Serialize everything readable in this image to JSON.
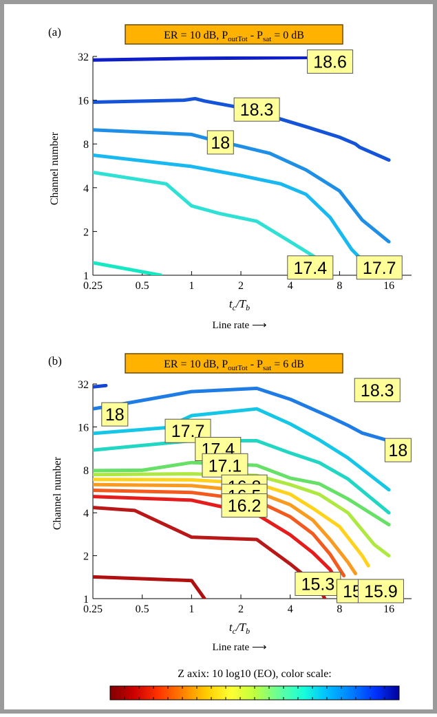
{
  "chart_data": [
    {
      "type": "contour",
      "panel_label": "(a)",
      "title": {
        "prefix": "ER = 10 dB, P",
        "sub1": "outTot",
        "mid": " - P",
        "sub2": "sat",
        "suffix": " = 0 dB"
      },
      "xlabel": {
        "t": "t",
        "t_sub": "c",
        "slash": "/T",
        "T_sub": "b"
      },
      "x_caption": "Line rate ⟶",
      "ylabel": "Channel number",
      "x_scale": "log2",
      "y_scale": "log2",
      "xlim": [
        0.25,
        22
      ],
      "ylim": [
        1,
        32
      ],
      "x_ticks": [
        0.25,
        0.5,
        1,
        2,
        4,
        8,
        16
      ],
      "x_tick_labels": [
        "0.25",
        "0.5",
        "1",
        "2",
        "4",
        "8",
        "16"
      ],
      "y_ticks": [
        1,
        2,
        4,
        8,
        16,
        32
      ],
      "y_tick_labels": [
        "1",
        "2",
        "4",
        "8",
        "16",
        "32"
      ],
      "series": [
        {
          "color": "#17e8c4",
          "points": [
            [
              0.25,
              1.22
            ],
            [
              0.65,
              1
            ]
          ]
        },
        {
          "color": "#2fe0d4",
          "points": [
            [
              0.25,
              5.1
            ],
            [
              0.7,
              4.25
            ],
            [
              1,
              3.0
            ],
            [
              1.5,
              2.65
            ],
            [
              2.5,
              2.35
            ],
            [
              4,
              1.7
            ],
            [
              6,
              1.28
            ],
            [
              7,
              1.1
            ]
          ]
        },
        {
          "color": "#18b8f0",
          "points": [
            [
              0.25,
              6.7
            ],
            [
              1,
              5.6
            ],
            [
              2,
              4.85
            ],
            [
              3.5,
              4.25
            ],
            [
              5,
              3.6
            ],
            [
              7,
              2.5
            ],
            [
              9.5,
              1.5
            ],
            [
              13,
              1.05
            ]
          ]
        },
        {
          "color": "#1f8fe6",
          "points": [
            [
              0.25,
              10.0
            ],
            [
              1,
              9.3
            ],
            [
              1.3,
              8.6
            ],
            [
              2,
              7.7
            ],
            [
              3,
              6.9
            ],
            [
              5,
              5.3
            ],
            [
              8,
              3.8
            ],
            [
              11,
              2.4
            ],
            [
              16,
              1.7
            ]
          ]
        },
        {
          "color": "#1554d8",
          "points": [
            [
              0.25,
              15.5
            ],
            [
              0.9,
              16.0
            ],
            [
              1.05,
              16.4
            ],
            [
              1.2,
              15.8
            ],
            [
              1.8,
              14.5
            ],
            [
              3,
              12.5
            ],
            [
              5,
              10.5
            ],
            [
              8,
              8.9
            ],
            [
              10,
              8.0
            ],
            [
              10.6,
              7.6
            ],
            [
              16,
              6.2
            ]
          ]
        },
        {
          "color": "#0e1ec8",
          "points": [
            [
              0.25,
              30.2
            ],
            [
              1,
              31.0
            ],
            [
              6.5,
              31.5
            ]
          ]
        }
      ],
      "labels": [
        {
          "text": "18.6",
          "x": 7,
          "y": 29.5
        },
        {
          "text": "18.3",
          "x": 2.5,
          "y": 13.8
        },
        {
          "text": "18",
          "x": 1.5,
          "y": 8.2
        },
        {
          "text": "17.4",
          "x": 5.3,
          "y": 1.13
        },
        {
          "text": "17.7",
          "x": 14,
          "y": 1.13
        }
      ]
    },
    {
      "type": "contour",
      "panel_label": "(b)",
      "title": {
        "prefix": "ER = 10 dB, P",
        "sub1": "outTot",
        "mid": " - P",
        "sub2": "sat",
        "suffix": " = 6 dB"
      },
      "xlabel": {
        "t": "t",
        "t_sub": "c",
        "slash": "/T",
        "T_sub": "b"
      },
      "x_caption": "Line rate ⟶",
      "ylabel": "Channel number",
      "x_scale": "log2",
      "y_scale": "log2",
      "xlim": [
        0.25,
        22
      ],
      "ylim": [
        1,
        32
      ],
      "x_ticks": [
        0.25,
        0.5,
        1,
        2,
        4,
        8,
        16
      ],
      "x_tick_labels": [
        "0.25",
        "0.5",
        "1",
        "2",
        "4",
        "8",
        "16"
      ],
      "y_ticks": [
        1,
        2,
        4,
        8,
        16,
        32
      ],
      "y_tick_labels": [
        "1",
        "2",
        "4",
        "8",
        "16",
        "32"
      ],
      "series": [
        {
          "color": "#b01010",
          "points": [
            [
              0.25,
              1.42
            ],
            [
              1,
              1.34
            ],
            [
              1.2,
              1
            ]
          ]
        },
        {
          "color": "#b81818",
          "points": [
            [
              0.25,
              4.35
            ],
            [
              0.45,
              4.15
            ],
            [
              1,
              2.7
            ],
            [
              2.5,
              2.6
            ],
            [
              4,
              1.75
            ],
            [
              6,
              1.2
            ],
            [
              6.5,
              1
            ]
          ]
        },
        {
          "color": "#e41c1c",
          "points": [
            [
              0.25,
              5.2
            ],
            [
              1,
              4.9
            ],
            [
              2.5,
              3.9
            ],
            [
              4,
              2.8
            ],
            [
              5.5,
              2.1
            ],
            [
              7,
              1.6
            ],
            [
              8,
              1.25
            ]
          ]
        },
        {
          "color": "#f25a1e",
          "points": [
            [
              0.25,
              5.75
            ],
            [
              1,
              5.55
            ],
            [
              2.5,
              4.85
            ],
            [
              4,
              3.75
            ],
            [
              5.5,
              2.85
            ],
            [
              7,
              2.05
            ],
            [
              8.5,
              1.45
            ]
          ]
        },
        {
          "color": "#fa9a1e",
          "points": [
            [
              0.25,
              6.3
            ],
            [
              1,
              6.2
            ],
            [
              2.5,
              5.6
            ],
            [
              4,
              4.55
            ],
            [
              5.5,
              3.55
            ],
            [
              7,
              2.6
            ],
            [
              9,
              1.8
            ],
            [
              10,
              1.5
            ]
          ]
        },
        {
          "color": "#ffd21e",
          "points": [
            [
              0.25,
              6.85
            ],
            [
              1,
              6.8
            ],
            [
              2.5,
              6.4
            ],
            [
              4,
              5.4
            ],
            [
              5.5,
              4.3
            ],
            [
              8,
              3.2
            ],
            [
              11,
              2.0
            ],
            [
              12,
              1.7
            ]
          ]
        },
        {
          "color": "#b0e842",
          "points": [
            [
              0.25,
              7.4
            ],
            [
              1,
              7.5
            ],
            [
              2.5,
              7.3
            ],
            [
              4,
              6.3
            ],
            [
              6,
              5.4
            ],
            [
              9,
              4.0
            ],
            [
              13,
              2.4
            ],
            [
              16,
              2.0
            ]
          ]
        },
        {
          "color": "#66e066",
          "points": [
            [
              0.25,
              7.9
            ],
            [
              0.5,
              7.95
            ],
            [
              1,
              9.0
            ],
            [
              2.5,
              8.6
            ],
            [
              4,
              7.0
            ],
            [
              6,
              6.4
            ],
            [
              9,
              5.0
            ],
            [
              16,
              3.3
            ]
          ]
        },
        {
          "color": "#22d6c4",
          "points": [
            [
              0.25,
              11.0
            ],
            [
              1,
              12.8
            ],
            [
              2.5,
              12.8
            ],
            [
              4,
              10.5
            ],
            [
              6,
              9.0
            ],
            [
              9,
              6.9
            ],
            [
              16,
              4.0
            ]
          ]
        },
        {
          "color": "#16c6e6",
          "points": [
            [
              0.25,
              14.4
            ],
            [
              0.7,
              15.8
            ],
            [
              1,
              19.2
            ],
            [
              2.5,
              21.4
            ],
            [
              4,
              16.8
            ],
            [
              6,
              13.0
            ],
            [
              9,
              9.7
            ],
            [
              16,
              5.8
            ]
          ]
        },
        {
          "color": "#1e7ce4",
          "points": [
            [
              0.25,
              21.4
            ],
            [
              0.35,
              22.8
            ],
            [
              1,
              28.3
            ],
            [
              2.5,
              29.8
            ],
            [
              4,
              25.0
            ],
            [
              7,
              18.8
            ],
            [
              9,
              16.4
            ],
            [
              11,
              14.5
            ],
            [
              16,
              12.8
            ]
          ]
        },
        {
          "color": "#1444d4",
          "points": [
            [
              0.25,
              30.5
            ],
            [
              0.3,
              31.2
            ]
          ]
        },
        {
          "color": "#1444d4",
          "points": [
            [
              17.5,
              29.2
            ],
            [
              18,
              29.6
            ]
          ]
        }
      ],
      "labels": [
        {
          "text": "18",
          "x": 0.34,
          "y": 19.6
        },
        {
          "text": "17.7",
          "x": 0.95,
          "y": 15.0
        },
        {
          "text": "17.4",
          "x": 1.45,
          "y": 11.2
        },
        {
          "text": "17.1",
          "x": 1.6,
          "y": 8.6
        },
        {
          "text": "16.8",
          "x": 2.1,
          "y": 6.1
        },
        {
          "text": "16.5",
          "x": 2.1,
          "y": 5.25
        },
        {
          "text": "16.2",
          "x": 2.1,
          "y": 4.5
        },
        {
          "text": "18.3",
          "x": 13.6,
          "y": 29.0
        },
        {
          "text": "18",
          "x": 18.2,
          "y": 11.0
        },
        {
          "text": "15.3",
          "x": 5.9,
          "y": 1.27
        },
        {
          "text": "15.6",
          "x": 10.6,
          "y": 1.13
        },
        {
          "text": "15.9",
          "x": 14.3,
          "y": 1.13
        }
      ]
    }
  ],
  "colorbar": {
    "label": "Z axix: 10 log10 (EO), color scale:",
    "colors": [
      "#800000",
      "#cc0000",
      "#ff3300",
      "#ff8000",
      "#ffcc00",
      "#ffff33",
      "#bfff40",
      "#66ff99",
      "#1affd9",
      "#00bfff",
      "#0080ff",
      "#0033ff",
      "#000099"
    ]
  }
}
